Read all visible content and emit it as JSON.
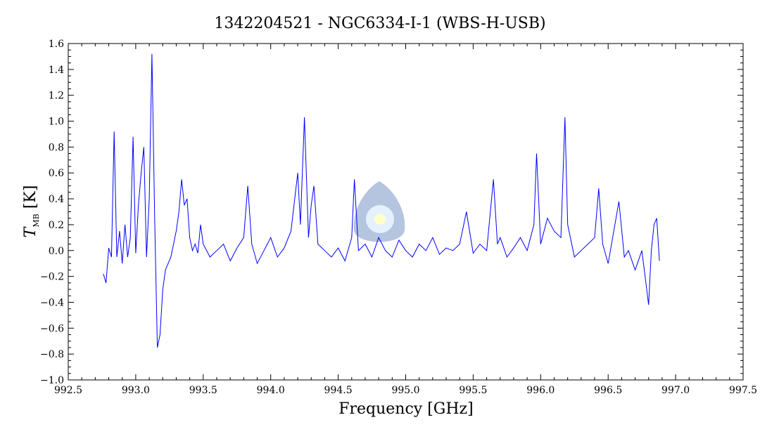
{
  "chart_data": {
    "type": "line",
    "title": "1342204521 - NGC6334-I-1 (WBS-H-USB)",
    "xlabel": "Frequency [GHz]",
    "ylabel": "T",
    "ylabel_subscript": "MB",
    "ylabel_unit": "[K]",
    "xlim": [
      992.5,
      997.5
    ],
    "ylim": [
      -1.0,
      1.6
    ],
    "x_ticks": [
      992.5,
      993.0,
      993.5,
      994.0,
      994.5,
      995.0,
      995.5,
      996.0,
      996.5,
      997.0,
      997.5
    ],
    "x_tick_labels": [
      "992.5",
      "993.0",
      "993.5",
      "994.0",
      "994.5",
      "995.0",
      "995.5",
      "996.0",
      "996.5",
      "997.0",
      "997.5"
    ],
    "y_ticks": [
      -1.0,
      -0.8,
      -0.6,
      -0.4,
      -0.2,
      0.0,
      0.2,
      0.4,
      0.6,
      0.8,
      1.0,
      1.2,
      1.4,
      1.6
    ],
    "y_tick_labels": [
      "−1.0",
      "−0.8",
      "−0.6",
      "−0.4",
      "−0.2",
      "0.0",
      "0.2",
      "0.4",
      "0.6",
      "0.8",
      "1.0",
      "1.2",
      "1.4",
      "1.6"
    ],
    "grid": false,
    "series": [
      {
        "color": "#0000ff",
        "x": [
          992.76,
          992.78,
          992.8,
          992.82,
          992.84,
          992.86,
          992.88,
          992.9,
          992.92,
          992.94,
          992.96,
          992.98,
          993.0,
          993.02,
          993.04,
          993.06,
          993.08,
          993.1,
          993.12,
          993.14,
          993.16,
          993.18,
          993.2,
          993.22,
          993.24,
          993.26,
          993.28,
          993.3,
          993.32,
          993.34,
          993.36,
          993.38,
          993.4,
          993.42,
          993.44,
          993.46,
          993.48,
          993.5,
          993.55,
          993.6,
          993.65,
          993.7,
          993.75,
          993.8,
          993.83,
          993.86,
          993.9,
          993.95,
          994.0,
          994.05,
          994.1,
          994.15,
          994.2,
          994.22,
          994.25,
          994.28,
          994.3,
          994.32,
          994.35,
          994.4,
          994.45,
          994.5,
          994.55,
          994.6,
          994.62,
          994.65,
          994.7,
          994.75,
          994.8,
          994.85,
          994.9,
          994.95,
          995.0,
          995.05,
          995.1,
          995.15,
          995.2,
          995.25,
          995.3,
          995.35,
          995.4,
          995.45,
          995.5,
          995.55,
          995.6,
          995.65,
          995.68,
          995.7,
          995.75,
          995.8,
          995.85,
          995.9,
          995.95,
          995.97,
          996.0,
          996.05,
          996.1,
          996.15,
          996.18,
          996.2,
          996.25,
          996.3,
          996.35,
          996.4,
          996.43,
          996.46,
          996.5,
          996.55,
          996.58,
          996.62,
          996.65,
          996.7,
          996.75,
          996.78,
          996.8,
          996.82,
          996.84,
          996.86,
          996.88
        ],
        "y": [
          -0.18,
          -0.25,
          0.02,
          -0.05,
          0.92,
          -0.05,
          0.15,
          -0.1,
          0.2,
          -0.05,
          0.1,
          0.88,
          -0.02,
          0.35,
          0.6,
          0.8,
          -0.05,
          0.4,
          1.52,
          0.25,
          -0.75,
          -0.65,
          -0.3,
          -0.15,
          -0.1,
          -0.05,
          0.05,
          0.15,
          0.3,
          0.55,
          0.35,
          0.4,
          0.1,
          0.0,
          0.05,
          -0.02,
          0.2,
          0.05,
          -0.05,
          0.0,
          0.05,
          -0.08,
          0.02,
          0.1,
          0.5,
          0.05,
          -0.1,
          0.0,
          0.1,
          -0.05,
          0.02,
          0.15,
          0.6,
          0.2,
          1.03,
          0.1,
          0.35,
          0.5,
          0.05,
          0.0,
          -0.05,
          0.02,
          -0.08,
          0.1,
          0.55,
          0.0,
          0.05,
          -0.05,
          0.1,
          0.0,
          -0.05,
          0.08,
          0.0,
          -0.05,
          0.05,
          0.0,
          0.1,
          -0.03,
          0.02,
          0.0,
          0.05,
          0.3,
          -0.02,
          0.05,
          0.0,
          0.55,
          0.05,
          0.1,
          -0.05,
          0.02,
          0.1,
          0.0,
          0.2,
          0.75,
          0.05,
          0.25,
          0.15,
          0.1,
          1.03,
          0.2,
          -0.05,
          0.0,
          0.05,
          0.1,
          0.48,
          0.05,
          -0.1,
          0.2,
          0.38,
          -0.05,
          0.0,
          -0.15,
          0.0,
          -0.25,
          -0.42,
          0.0,
          0.2,
          0.25,
          -0.08
        ]
      }
    ]
  }
}
